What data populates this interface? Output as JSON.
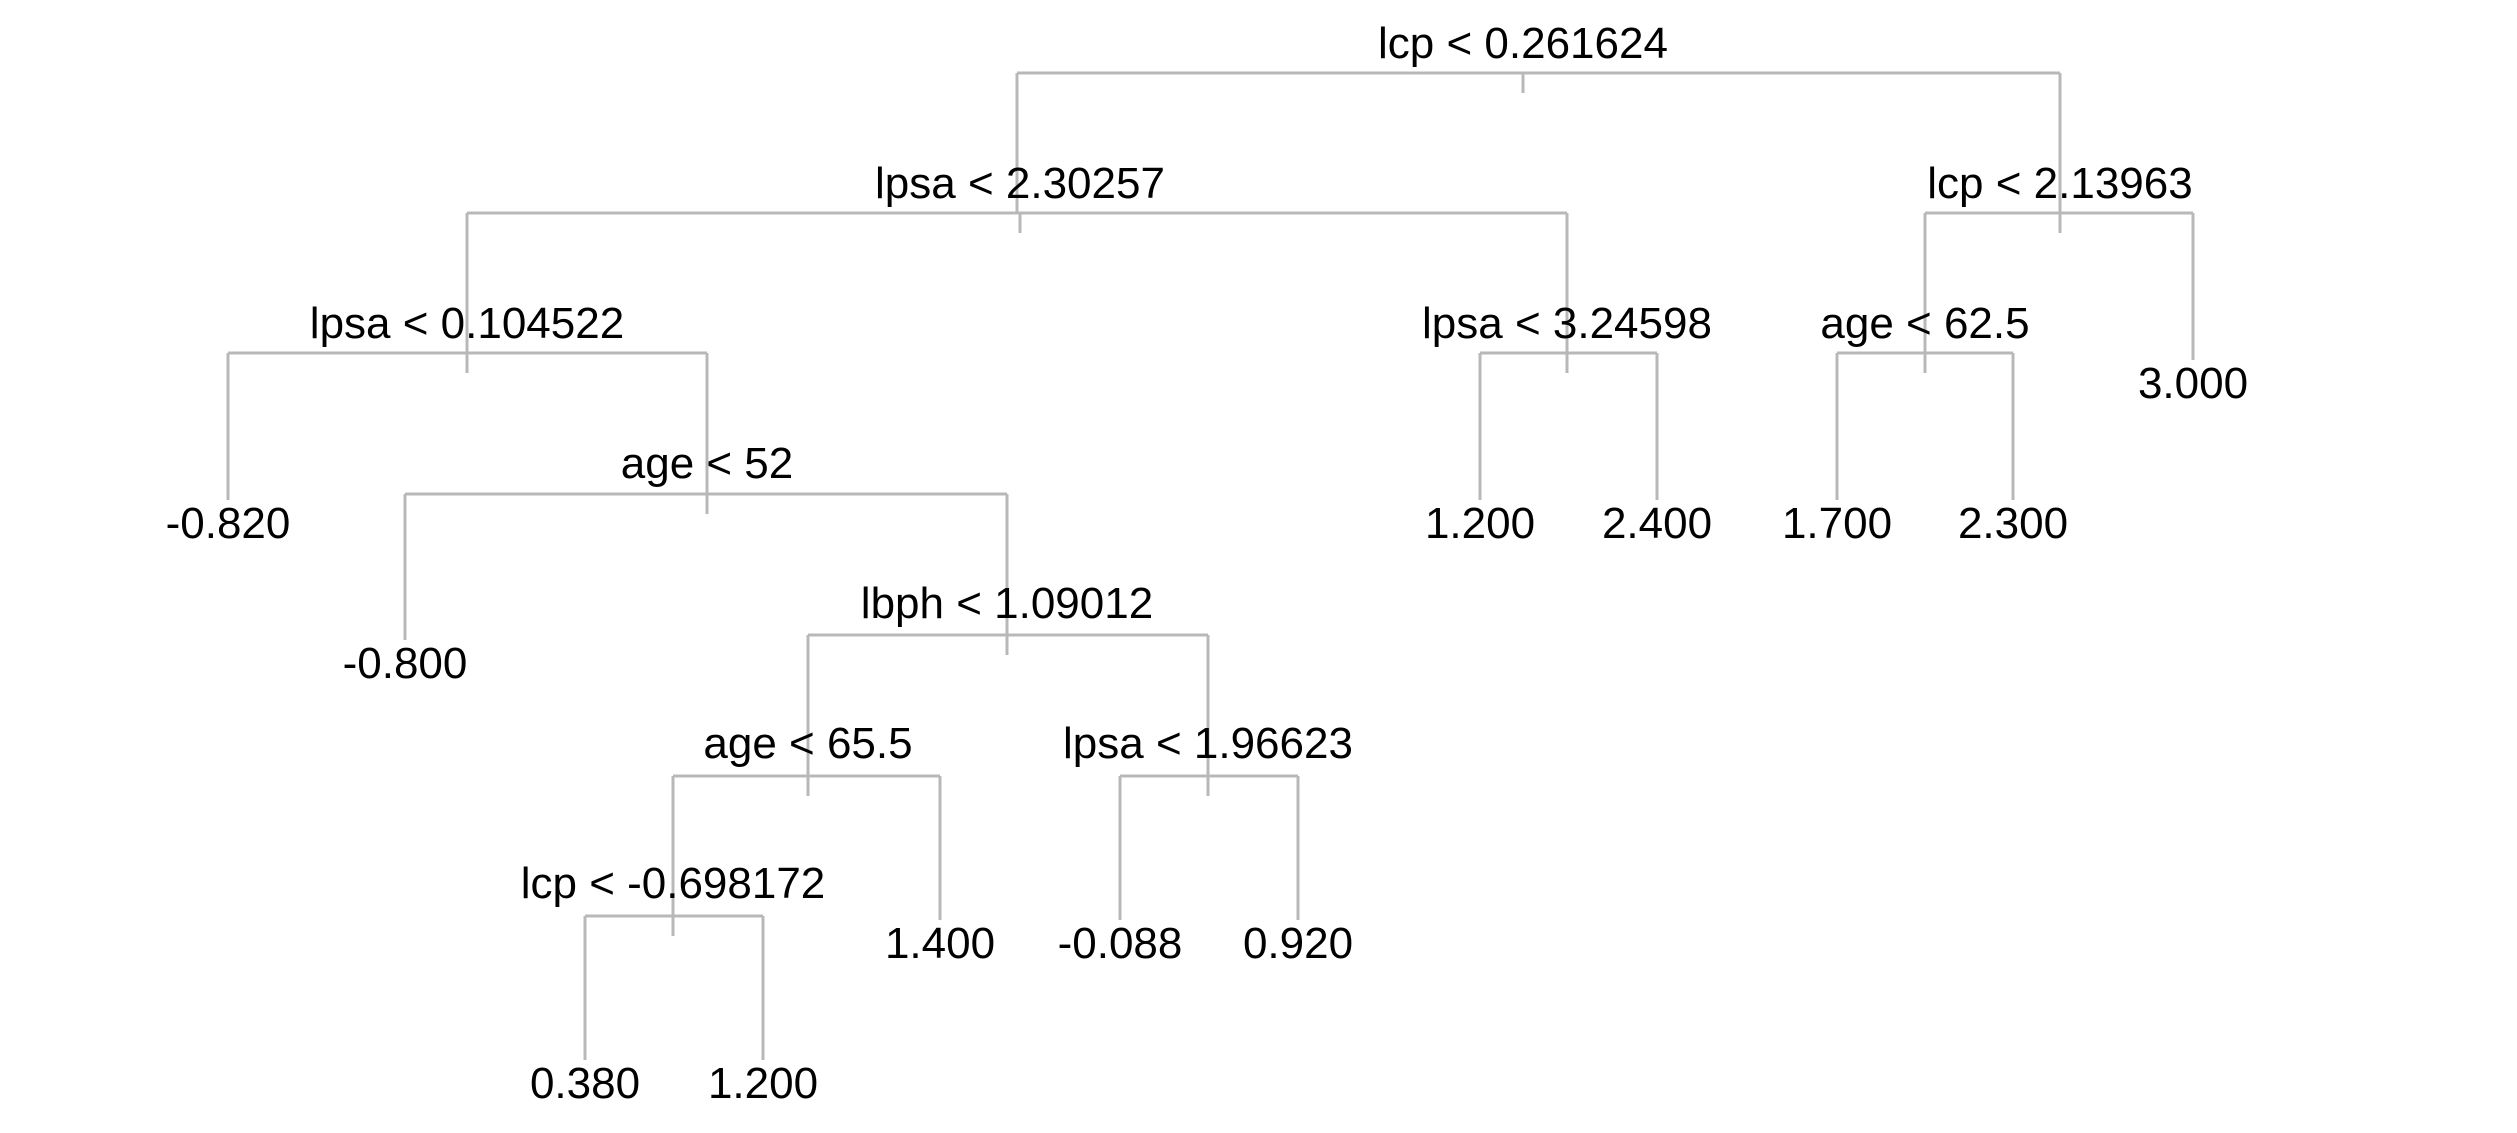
{
  "tree": {
    "nodes": [
      {
        "id": "n1",
        "kind": "split",
        "label": "lcp < 0.261624"
      },
      {
        "id": "n2",
        "kind": "split",
        "label": "lpsa < 2.30257"
      },
      {
        "id": "n3",
        "kind": "split",
        "label": "lcp < 2.13963"
      },
      {
        "id": "n4",
        "kind": "split",
        "label": "lpsa < 0.104522"
      },
      {
        "id": "n5",
        "kind": "split",
        "label": "lpsa < 3.24598"
      },
      {
        "id": "n6",
        "kind": "split",
        "label": "age < 62.5"
      },
      {
        "id": "n7",
        "kind": "leaf",
        "label": "3.000"
      },
      {
        "id": "n8",
        "kind": "leaf",
        "label": "-0.820"
      },
      {
        "id": "n9",
        "kind": "split",
        "label": "age < 52"
      },
      {
        "id": "n10",
        "kind": "leaf",
        "label": "1.200"
      },
      {
        "id": "n11",
        "kind": "leaf",
        "label": "2.400"
      },
      {
        "id": "n12",
        "kind": "leaf",
        "label": "1.700"
      },
      {
        "id": "n13",
        "kind": "leaf",
        "label": "2.300"
      },
      {
        "id": "n14",
        "kind": "leaf",
        "label": "-0.800"
      },
      {
        "id": "n15",
        "kind": "split",
        "label": "lbph < 1.09012"
      },
      {
        "id": "n16",
        "kind": "split",
        "label": "age < 65.5"
      },
      {
        "id": "n17",
        "kind": "split",
        "label": "lpsa < 1.96623"
      },
      {
        "id": "n18",
        "kind": "split",
        "label": "lcp < -0.698172"
      },
      {
        "id": "n19",
        "kind": "leaf",
        "label": "1.400"
      },
      {
        "id": "n20",
        "kind": "leaf",
        "label": "-0.088"
      },
      {
        "id": "n21",
        "kind": "leaf",
        "label": "0.920"
      },
      {
        "id": "n22",
        "kind": "leaf",
        "label": "0.380"
      },
      {
        "id": "n23",
        "kind": "leaf",
        "label": "1.200"
      }
    ],
    "edges": [
      [
        "n1",
        "n2"
      ],
      [
        "n1",
        "n3"
      ],
      [
        "n2",
        "n4"
      ],
      [
        "n2",
        "n5"
      ],
      [
        "n3",
        "n6"
      ],
      [
        "n3",
        "n7"
      ],
      [
        "n4",
        "n8"
      ],
      [
        "n4",
        "n9"
      ],
      [
        "n5",
        "n10"
      ],
      [
        "n5",
        "n11"
      ],
      [
        "n6",
        "n12"
      ],
      [
        "n6",
        "n13"
      ],
      [
        "n9",
        "n14"
      ],
      [
        "n9",
        "n15"
      ],
      [
        "n15",
        "n16"
      ],
      [
        "n15",
        "n17"
      ],
      [
        "n16",
        "n18"
      ],
      [
        "n16",
        "n19"
      ],
      [
        "n17",
        "n20"
      ],
      [
        "n17",
        "n21"
      ],
      [
        "n18",
        "n22"
      ],
      [
        "n18",
        "n23"
      ]
    ]
  }
}
